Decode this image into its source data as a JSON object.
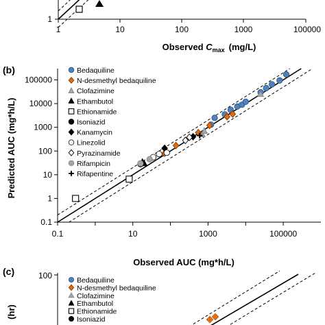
{
  "colors": {
    "bedaquiline": "#4f81bd",
    "desmethyl": "#e46c0a",
    "clofazimine": "#a6a6a6",
    "rifampicin": "#a6a6a6",
    "line": "#000000"
  },
  "chart_data": [
    {
      "panel": "",
      "type": "scatter",
      "scale": "log",
      "xlabel": "Observed ",
      "xlabel_var": "C",
      "xlabel_sub": "max",
      "xlabel_unit": "(mg/L)",
      "xticks": [
        "1",
        "10",
        "100",
        "1000",
        "10000",
        "100000"
      ],
      "yticks": [
        "1"
      ],
      "xlim": [
        1,
        100000
      ],
      "visible_ylim": [
        1,
        3
      ],
      "series": [
        {
          "marker": "triangle-black",
          "points": [
            [
              4.5,
              2.3
            ]
          ]
        },
        {
          "marker": "square-open",
          "points": [
            [
              2.2,
              1.8
            ]
          ]
        }
      ]
    },
    {
      "panel": "(b)",
      "type": "scatter",
      "scale": "log",
      "xlabel": "Observed AUC (mg*h/L)",
      "ylabel": "Predicted AUC (mg*h/L)",
      "xticks": [
        "0.1",
        "10",
        "1000",
        "100000"
      ],
      "yticks": [
        "0.1",
        "1",
        "10",
        "100",
        "1000",
        "10000",
        "100000"
      ],
      "xlim": [
        0.1,
        1000000
      ],
      "ylim": [
        0.1,
        300000
      ],
      "grid": false,
      "legend_position": "top-left",
      "series": [
        {
          "name": "Bedaquiline",
          "marker": "circle-blue",
          "points": [
            [
              1200,
              1300
            ],
            [
              1500,
              2500
            ],
            [
              2800,
              3500
            ],
            [
              4000,
              5500
            ],
            [
              6000,
              7500
            ],
            [
              8000,
              9000
            ],
            [
              10000,
              12000
            ],
            [
              25000,
              30000
            ],
            [
              35000,
              45000
            ],
            [
              50000,
              65000
            ],
            [
              80000,
              95000
            ],
            [
              120000,
              170000
            ]
          ]
        },
        {
          "name": "N-desmethyl bedaquiline",
          "marker": "diamond-orange",
          "points": [
            [
              70,
              80
            ],
            [
              140,
              170
            ],
            [
              550,
              600
            ],
            [
              1100,
              1200
            ],
            [
              3200,
              2800
            ],
            [
              4500,
              3600
            ]
          ]
        },
        {
          "name": "Clofazimine",
          "marker": "triangle-gray",
          "points": [
            [
              700,
              500
            ],
            [
              800,
              700
            ],
            [
              25000,
              25000
            ]
          ]
        },
        {
          "name": "Ethambutol",
          "marker": "triangle-black",
          "points": [
            [
              18,
              35
            ],
            [
              20,
              30
            ]
          ]
        },
        {
          "name": "Ethionamide",
          "marker": "square-open",
          "points": [
            [
              0.3,
              1
            ],
            [
              8,
              6.5
            ]
          ]
        },
        {
          "name": "Isoniazid",
          "marker": "circle-black",
          "points": [
            [
              16,
              28
            ]
          ]
        },
        {
          "name": "Kanamycin",
          "marker": "diamond-black",
          "points": [
            [
              70,
              130
            ],
            [
              400,
              400
            ]
          ]
        },
        {
          "name": "Linezolid",
          "marker": "circle-open",
          "points": [
            [
              35,
              55
            ],
            [
              50,
              75
            ],
            [
              80,
              85
            ]
          ]
        },
        {
          "name": "Pyrazinamide",
          "marker": "diamond-open",
          "points": [
            [
              250,
              280
            ],
            [
              320,
              380
            ]
          ]
        },
        {
          "name": "Rifampicin",
          "marker": "circle-gray",
          "points": [
            [
              16,
              30
            ],
            [
              28,
              45
            ]
          ]
        },
        {
          "name": "Rifapentine",
          "marker": "plus-black",
          "points": [
            [
              600,
              450
            ]
          ]
        }
      ]
    },
    {
      "panel": "(c)",
      "type": "scatter",
      "scale": "log",
      "ylabel": "(hr)",
      "yticks": [
        "100"
      ],
      "legend_position": "top-left",
      "series": [
        {
          "name": "Bedaquiline",
          "marker": "circle-blue"
        },
        {
          "name": "N-desmethyl bedaquiline",
          "marker": "diamond-orange",
          "points": [
            [
              50,
              40
            ],
            [
              58,
              46
            ]
          ]
        },
        {
          "name": "Clofazimine",
          "marker": "triangle-gray"
        },
        {
          "name": "Ethambutol",
          "marker": "triangle-black"
        },
        {
          "name": "Ethionamide",
          "marker": "square-open"
        },
        {
          "name": "Isoniazid",
          "marker": "circle-black"
        }
      ]
    }
  ]
}
